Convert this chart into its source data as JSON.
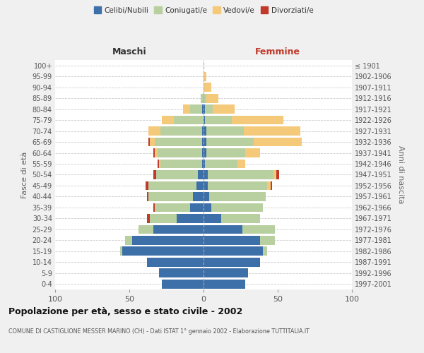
{
  "age_groups": [
    "0-4",
    "5-9",
    "10-14",
    "15-19",
    "20-24",
    "25-29",
    "30-34",
    "35-39",
    "40-44",
    "45-49",
    "50-54",
    "55-59",
    "60-64",
    "65-69",
    "70-74",
    "75-79",
    "80-84",
    "85-89",
    "90-94",
    "95-99",
    "100+"
  ],
  "birth_years": [
    "1997-2001",
    "1992-1996",
    "1987-1991",
    "1982-1986",
    "1977-1981",
    "1972-1976",
    "1967-1971",
    "1962-1966",
    "1957-1961",
    "1952-1956",
    "1947-1951",
    "1942-1946",
    "1937-1941",
    "1932-1936",
    "1927-1931",
    "1922-1926",
    "1917-1921",
    "1912-1916",
    "1907-1911",
    "1902-1906",
    "≤ 1901"
  ],
  "maschi": {
    "celibi": [
      28,
      30,
      38,
      55,
      48,
      34,
      18,
      9,
      7,
      5,
      4,
      1,
      1,
      1,
      1,
      0,
      1,
      0,
      0,
      0,
      0
    ],
    "coniugati": [
      0,
      0,
      0,
      1,
      5,
      10,
      18,
      24,
      30,
      32,
      28,
      28,
      30,
      32,
      28,
      20,
      8,
      2,
      0,
      0,
      0
    ],
    "vedovi": [
      0,
      0,
      0,
      0,
      0,
      0,
      0,
      0,
      0,
      0,
      0,
      1,
      2,
      3,
      8,
      8,
      5,
      0,
      0,
      0,
      0
    ],
    "divorziati": [
      0,
      0,
      0,
      0,
      0,
      0,
      2,
      1,
      1,
      2,
      2,
      1,
      1,
      1,
      0,
      0,
      0,
      0,
      0,
      0,
      0
    ]
  },
  "femmine": {
    "nubili": [
      28,
      30,
      38,
      40,
      38,
      26,
      12,
      5,
      4,
      3,
      3,
      1,
      2,
      2,
      2,
      1,
      1,
      0,
      0,
      0,
      0
    ],
    "coniugate": [
      0,
      0,
      0,
      3,
      10,
      22,
      26,
      35,
      38,
      40,
      44,
      22,
      26,
      32,
      25,
      18,
      5,
      2,
      0,
      0,
      0
    ],
    "vedove": [
      0,
      0,
      0,
      0,
      0,
      0,
      0,
      0,
      0,
      2,
      2,
      5,
      10,
      32,
      38,
      35,
      15,
      8,
      5,
      2,
      0
    ],
    "divorziate": [
      0,
      0,
      0,
      0,
      0,
      0,
      0,
      0,
      0,
      1,
      2,
      0,
      0,
      0,
      0,
      0,
      0,
      0,
      0,
      0,
      0
    ]
  },
  "colors": {
    "celibi": "#3d6fa8",
    "coniugati": "#b8cfa0",
    "vedovi": "#f5c97a",
    "divorziati": "#c0392b"
  },
  "xlim": 100,
  "title": "Popolazione per età, sesso e stato civile - 2002",
  "subtitle": "COMUNE DI CASTIGLIONE MESSER MARINO (CH) - Dati ISTAT 1° gennaio 2002 - Elaborazione TUTTITALIA.IT",
  "ylabel_left": "Fasce di età",
  "ylabel_right": "Anni di nascita",
  "bg_color": "#f0f0f0",
  "plot_bg": "#ffffff"
}
